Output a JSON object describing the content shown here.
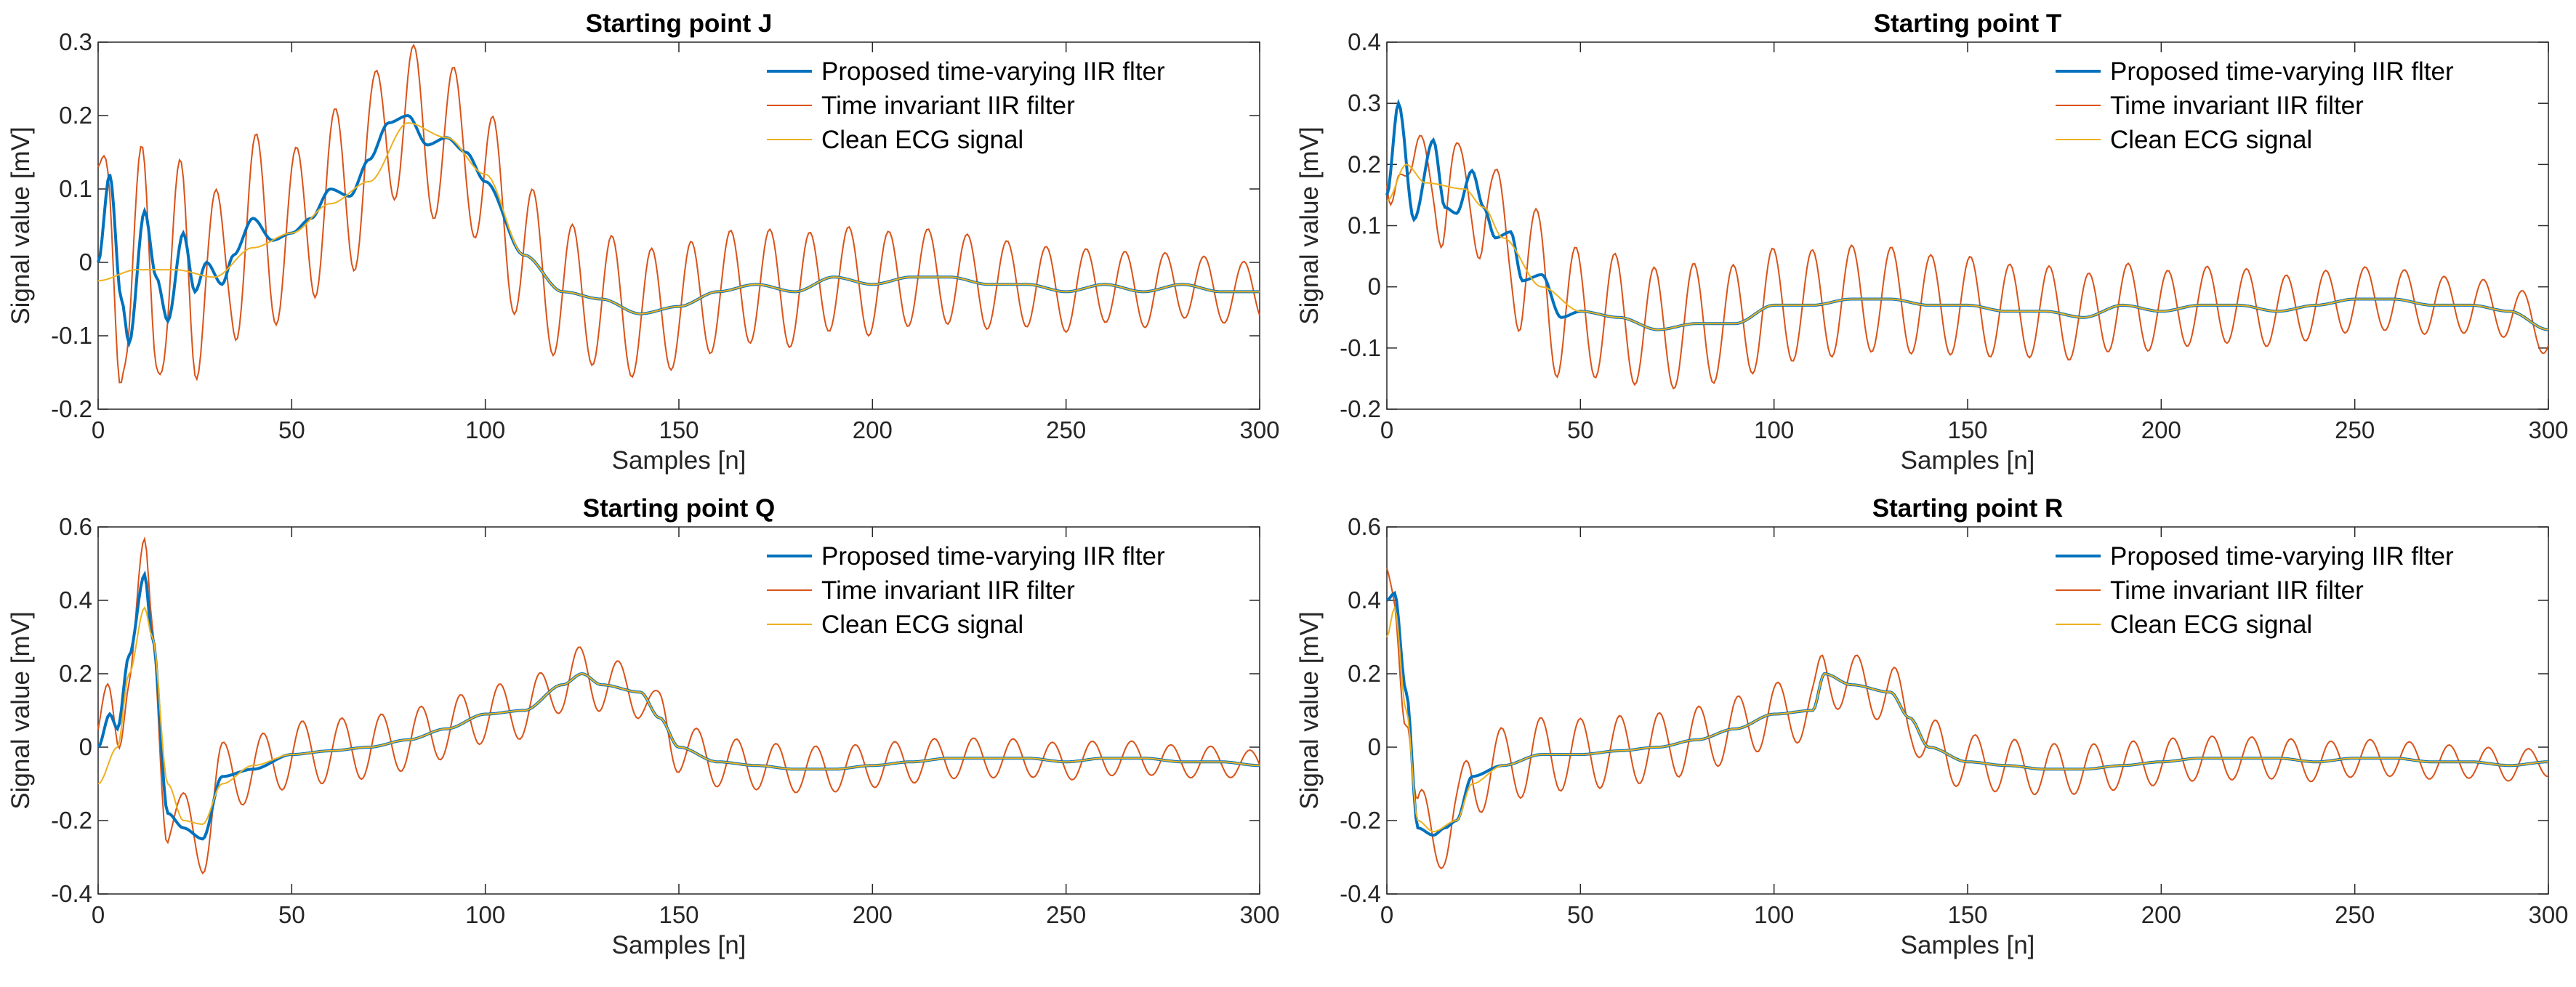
{
  "colors": {
    "proposed": "#0072BD",
    "invariant": "#D95319",
    "clean": "#EDB120",
    "axes": "#262626"
  },
  "legend": {
    "entries": [
      "Proposed time-varying IIR flter",
      "Time invariant IIR filter",
      "Clean ECG signal"
    ],
    "placement": "top-right"
  },
  "chart_data": [
    {
      "type": "line",
      "title": "Starting point J",
      "xlabel": "Samples [n]",
      "ylabel": "Signal value [mV]",
      "xlim": [
        0,
        300
      ],
      "ylim": [
        -0.2,
        0.3
      ],
      "xticks": [
        0,
        50,
        100,
        150,
        200,
        250,
        300
      ],
      "yticks": [
        -0.2,
        -0.1,
        0,
        0.1,
        0.2,
        0.3
      ],
      "ytick_labels": [
        "-0.2",
        "-0.1",
        "0",
        "0.1",
        "0.2",
        "0.3"
      ],
      "interference": {
        "period": 10.2,
        "phase": 1.5,
        "amp_start": 0.13,
        "amp_end": 0.04
      },
      "series": [
        {
          "name": "Clean ECG signal",
          "x": [
            0,
            10,
            20,
            30,
            40,
            50,
            60,
            70,
            80,
            90,
            100,
            110,
            120,
            130,
            140,
            150,
            160,
            170,
            180,
            190,
            200,
            210,
            220,
            230,
            240,
            250,
            260,
            270,
            280,
            290,
            300
          ],
          "y": [
            -0.025,
            -0.01,
            -0.01,
            -0.02,
            0.02,
            0.04,
            0.08,
            0.11,
            0.19,
            0.17,
            0.12,
            0.01,
            -0.04,
            -0.05,
            -0.07,
            -0.06,
            -0.04,
            -0.03,
            -0.04,
            -0.02,
            -0.03,
            -0.02,
            -0.02,
            -0.03,
            -0.03,
            -0.04,
            -0.03,
            -0.04,
            -0.03,
            -0.04,
            -0.04
          ]
        },
        {
          "name": "Proposed time-varying IIR flter",
          "x": [
            0,
            3,
            6,
            8,
            12,
            15,
            18,
            22,
            25,
            28,
            32,
            35,
            40,
            45,
            50,
            55,
            60,
            65,
            70,
            75,
            80,
            85,
            90,
            95,
            100,
            110,
            120,
            130,
            140,
            150,
            160,
            170,
            180,
            190,
            200,
            210,
            220,
            230,
            240,
            250,
            260,
            270,
            280,
            290,
            300
          ],
          "y": [
            0,
            0.12,
            -0.05,
            -0.11,
            0.07,
            -0.02,
            -0.08,
            0.04,
            -0.04,
            0.0,
            -0.03,
            0.01,
            0.06,
            0.03,
            0.04,
            0.06,
            0.1,
            0.09,
            0.14,
            0.19,
            0.2,
            0.16,
            0.17,
            0.15,
            0.11,
            0.01,
            -0.04,
            -0.05,
            -0.07,
            -0.06,
            -0.04,
            -0.03,
            -0.04,
            -0.02,
            -0.03,
            -0.02,
            -0.02,
            -0.03,
            -0.03,
            -0.04,
            -0.03,
            -0.04,
            -0.03,
            -0.04,
            -0.04
          ]
        }
      ]
    },
    {
      "type": "line",
      "title": "Starting point T",
      "xlabel": "Samples [n]",
      "ylabel": "Signal value [mV]",
      "xlim": [
        0,
        300
      ],
      "ylim": [
        -0.2,
        0.4
      ],
      "xticks": [
        0,
        50,
        100,
        150,
        200,
        250,
        300
      ],
      "yticks": [
        -0.2,
        -0.1,
        0,
        0.1,
        0.2,
        0.3,
        0.4
      ],
      "ytick_labels": [
        "-0.2",
        "-0.1",
        "0",
        "0.1",
        "0.2",
        "0.3",
        "0.4"
      ],
      "interference": {
        "period": 10.2,
        "phase": 3.0,
        "amp_start": 0.12,
        "amp_end": 0.04
      },
      "series": [
        {
          "name": "Clean ECG signal",
          "x": [
            0,
            5,
            10,
            20,
            25,
            30,
            40,
            50,
            60,
            70,
            80,
            90,
            100,
            110,
            120,
            130,
            140,
            150,
            160,
            170,
            180,
            190,
            200,
            210,
            220,
            230,
            240,
            250,
            260,
            270,
            280,
            290,
            300
          ],
          "y": [
            0.14,
            0.2,
            0.17,
            0.16,
            0.13,
            0.08,
            0.0,
            -0.04,
            -0.05,
            -0.07,
            -0.06,
            -0.06,
            -0.03,
            -0.03,
            -0.02,
            -0.02,
            -0.03,
            -0.03,
            -0.04,
            -0.04,
            -0.05,
            -0.03,
            -0.04,
            -0.03,
            -0.03,
            -0.04,
            -0.03,
            -0.02,
            -0.02,
            -0.03,
            -0.03,
            -0.04,
            -0.07
          ]
        },
        {
          "name": "Proposed time-varying IIR flter",
          "x": [
            0,
            3,
            7,
            12,
            15,
            18,
            22,
            25,
            28,
            32,
            35,
            40,
            45,
            50,
            60,
            70,
            80,
            90,
            100,
            110,
            120,
            130,
            140,
            150,
            160,
            170,
            180,
            190,
            200,
            210,
            220,
            230,
            240,
            250,
            260,
            270,
            280,
            290,
            300
          ],
          "y": [
            0.15,
            0.3,
            0.11,
            0.24,
            0.13,
            0.12,
            0.19,
            0.13,
            0.08,
            0.09,
            0.01,
            0.02,
            -0.05,
            -0.04,
            -0.05,
            -0.07,
            -0.06,
            -0.06,
            -0.03,
            -0.03,
            -0.02,
            -0.02,
            -0.03,
            -0.03,
            -0.04,
            -0.04,
            -0.05,
            -0.03,
            -0.04,
            -0.03,
            -0.03,
            -0.04,
            -0.03,
            -0.02,
            -0.02,
            -0.03,
            -0.03,
            -0.04,
            -0.07
          ]
        }
      ]
    },
    {
      "type": "line",
      "title": "Starting point Q",
      "xlabel": "Samples [n]",
      "ylabel": "Signal value [mV]",
      "xlim": [
        0,
        300
      ],
      "ylim": [
        -0.4,
        0.6
      ],
      "xticks": [
        0,
        50,
        100,
        150,
        200,
        250,
        300
      ],
      "yticks": [
        -0.4,
        -0.2,
        0,
        0.2,
        0.4,
        0.6
      ],
      "ytick_labels": [
        "-0.4",
        "-0.2",
        "0",
        "0.2",
        "0.4",
        "0.6"
      ],
      "interference": {
        "period": 10.2,
        "phase": 0.5,
        "amp_start": 0.1,
        "amp_end": 0.04
      },
      "series": [
        {
          "name": "Clean ECG signal",
          "x": [
            0,
            5,
            8,
            12,
            14,
            18,
            22,
            27,
            32,
            40,
            50,
            60,
            70,
            80,
            90,
            100,
            110,
            120,
            125,
            130,
            140,
            145,
            150,
            160,
            170,
            180,
            190,
            200,
            210,
            220,
            230,
            240,
            250,
            260,
            270,
            280,
            290,
            300
          ],
          "y": [
            -0.1,
            0.0,
            0.2,
            0.38,
            0.3,
            -0.1,
            -0.2,
            -0.21,
            -0.1,
            -0.05,
            -0.02,
            -0.01,
            0.0,
            0.02,
            0.05,
            0.09,
            0.1,
            0.17,
            0.2,
            0.17,
            0.15,
            0.08,
            0.0,
            -0.04,
            -0.05,
            -0.06,
            -0.06,
            -0.05,
            -0.04,
            -0.03,
            -0.03,
            -0.03,
            -0.04,
            -0.03,
            -0.03,
            -0.04,
            -0.04,
            -0.05
          ]
        },
        {
          "name": "Proposed time-varying IIR flter",
          "x": [
            0,
            3,
            5,
            8,
            12,
            14,
            18,
            22,
            27,
            32,
            40,
            50,
            60,
            70,
            80,
            90,
            100,
            110,
            120,
            125,
            130,
            140,
            145,
            150,
            160,
            170,
            180,
            190,
            200,
            210,
            220,
            230,
            240,
            250,
            260,
            270,
            280,
            290,
            300
          ],
          "y": [
            0,
            0.09,
            0.05,
            0.25,
            0.47,
            0.3,
            -0.18,
            -0.22,
            -0.25,
            -0.08,
            -0.06,
            -0.02,
            -0.01,
            0.0,
            0.02,
            0.05,
            0.09,
            0.1,
            0.17,
            0.2,
            0.17,
            0.15,
            0.08,
            0.0,
            -0.04,
            -0.05,
            -0.06,
            -0.06,
            -0.05,
            -0.04,
            -0.03,
            -0.03,
            -0.03,
            -0.04,
            -0.03,
            -0.03,
            -0.04,
            -0.04,
            -0.05
          ]
        }
      ]
    },
    {
      "type": "line",
      "title": "Starting point R",
      "xlabel": "Samples [n]",
      "ylabel": "Signal value [mV]",
      "xlim": [
        0,
        300
      ],
      "ylim": [
        -0.4,
        0.6
      ],
      "xticks": [
        0,
        50,
        100,
        150,
        200,
        250,
        300
      ],
      "yticks": [
        -0.4,
        -0.2,
        0,
        0.2,
        0.4,
        0.6
      ],
      "ytick_labels": [
        "-0.4",
        "-0.2",
        "0",
        "0.2",
        "0.4",
        "0.6"
      ],
      "interference": {
        "period": 10.2,
        "phase": 2.2,
        "amp_start": 0.11,
        "amp_end": 0.04
      },
      "series": [
        {
          "name": "Clean ECG signal",
          "x": [
            0,
            2,
            5,
            8,
            12,
            18,
            22,
            30,
            40,
            50,
            60,
            70,
            80,
            90,
            100,
            110,
            113,
            120,
            130,
            135,
            140,
            150,
            160,
            170,
            180,
            190,
            200,
            210,
            220,
            230,
            240,
            250,
            260,
            270,
            280,
            290,
            300
          ],
          "y": [
            0.3,
            0.38,
            0.1,
            -0.2,
            -0.23,
            -0.2,
            -0.1,
            -0.05,
            -0.02,
            -0.02,
            -0.01,
            0.0,
            0.02,
            0.05,
            0.09,
            0.1,
            0.2,
            0.17,
            0.15,
            0.08,
            0.0,
            -0.04,
            -0.05,
            -0.06,
            -0.06,
            -0.05,
            -0.04,
            -0.03,
            -0.03,
            -0.03,
            -0.04,
            -0.03,
            -0.03,
            -0.04,
            -0.04,
            -0.05,
            -0.04
          ]
        },
        {
          "name": "Proposed time-varying IIR flter",
          "x": [
            0,
            2,
            5,
            8,
            12,
            15,
            18,
            22,
            30,
            40,
            50,
            60,
            70,
            80,
            90,
            100,
            110,
            113,
            120,
            130,
            135,
            140,
            150,
            160,
            170,
            180,
            190,
            200,
            210,
            220,
            230,
            240,
            250,
            260,
            270,
            280,
            290,
            300
          ],
          "y": [
            0.4,
            0.42,
            0.15,
            -0.22,
            -0.24,
            -0.22,
            -0.2,
            -0.08,
            -0.05,
            -0.02,
            -0.02,
            -0.01,
            0.0,
            0.02,
            0.05,
            0.09,
            0.1,
            0.2,
            0.17,
            0.15,
            0.08,
            0.0,
            -0.04,
            -0.05,
            -0.06,
            -0.06,
            -0.05,
            -0.04,
            -0.03,
            -0.03,
            -0.03,
            -0.04,
            -0.03,
            -0.03,
            -0.04,
            -0.04,
            -0.05,
            -0.04
          ]
        }
      ]
    }
  ]
}
